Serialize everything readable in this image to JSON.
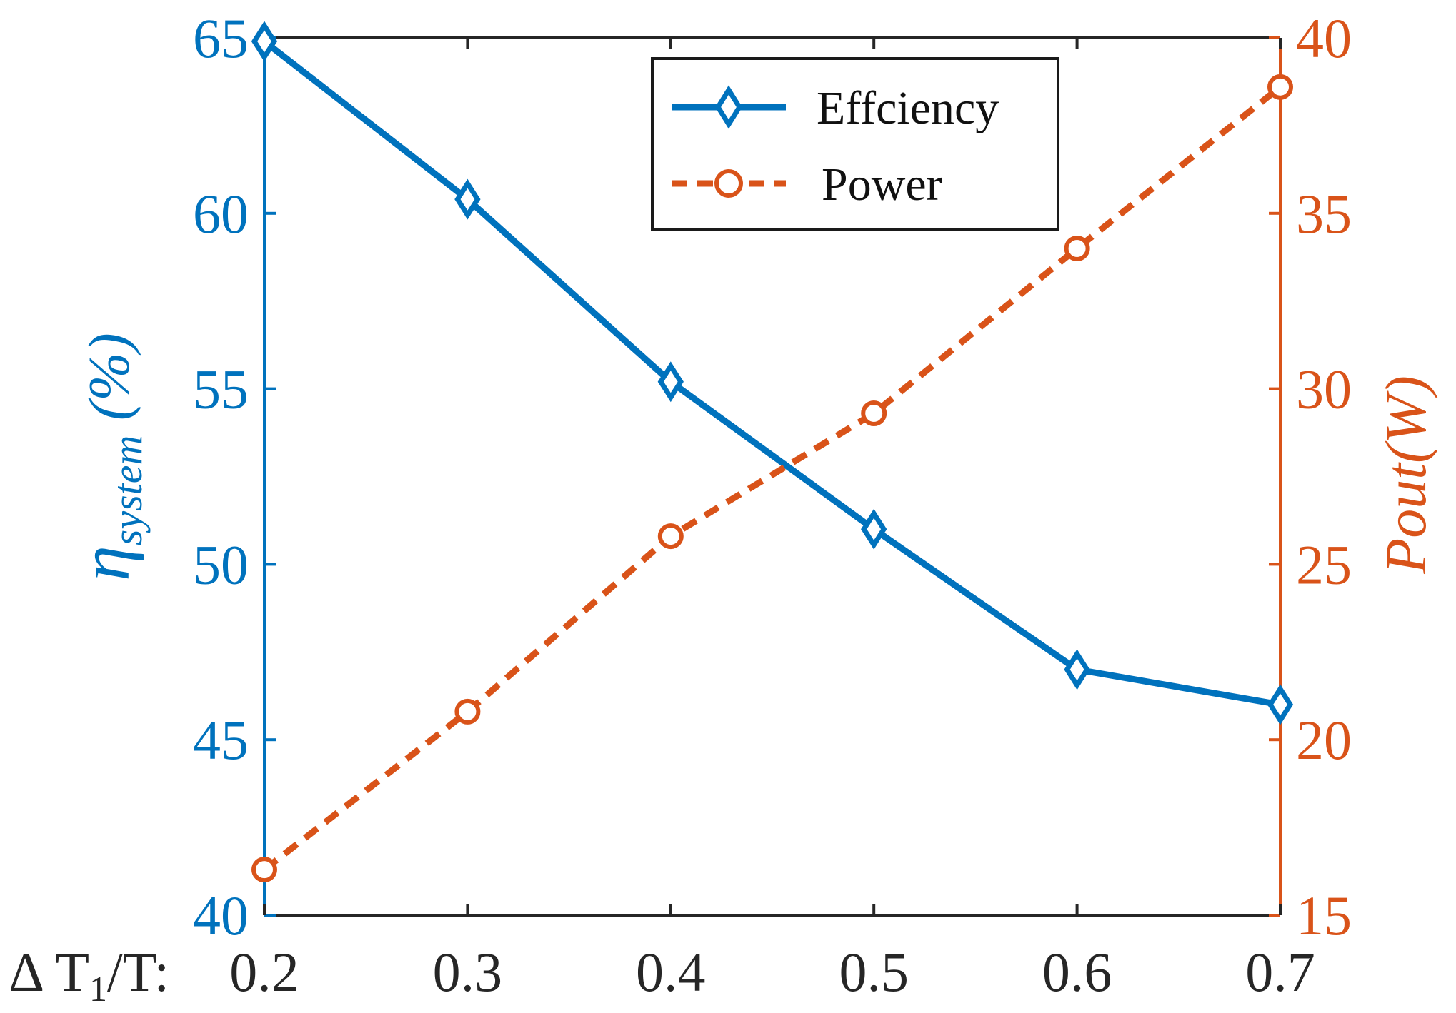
{
  "chart_data": {
    "type": "line",
    "title": "",
    "xlabel": "Δ T1/T:",
    "xlabel_parts": {
      "prefix": "Δ T",
      "subscript": "1",
      "suffix": "/T:"
    },
    "x": [
      0.2,
      0.3,
      0.4,
      0.5,
      0.6,
      0.7
    ],
    "x_tick_labels": [
      "0.2",
      "0.3",
      "0.4",
      "0.5",
      "0.6",
      "0.7"
    ],
    "xlim": [
      0.2,
      0.7
    ],
    "y_left": {
      "label": "ηsystem (%)",
      "label_parts": {
        "symbol": "η",
        "subscript": "system",
        "suffix": " (%)"
      },
      "ylim": [
        40,
        65
      ],
      "ticks": [
        "40",
        "45",
        "50",
        "55",
        "60",
        "65"
      ],
      "color": "#0072BD"
    },
    "y_right": {
      "label": "Pout(W)",
      "ylim": [
        15,
        40
      ],
      "ticks": [
        "15",
        "20",
        "25",
        "30",
        "35",
        "40"
      ],
      "color": "#D95319"
    },
    "series": [
      {
        "name": "Effciency",
        "axis": "left",
        "values": [
          64.9,
          60.4,
          55.2,
          51.0,
          47.0,
          46.0
        ],
        "color": "#0072BD",
        "marker": "diamond",
        "line_style": "solid"
      },
      {
        "name": "Power",
        "axis": "right",
        "values": [
          16.3,
          20.8,
          25.8,
          29.3,
          34.0,
          38.6
        ],
        "color": "#D95319",
        "marker": "circle",
        "line_style": "dashed"
      }
    ],
    "legend": {
      "position": "top-center",
      "entries": [
        "Effciency",
        "Power"
      ]
    },
    "grid": false
  }
}
